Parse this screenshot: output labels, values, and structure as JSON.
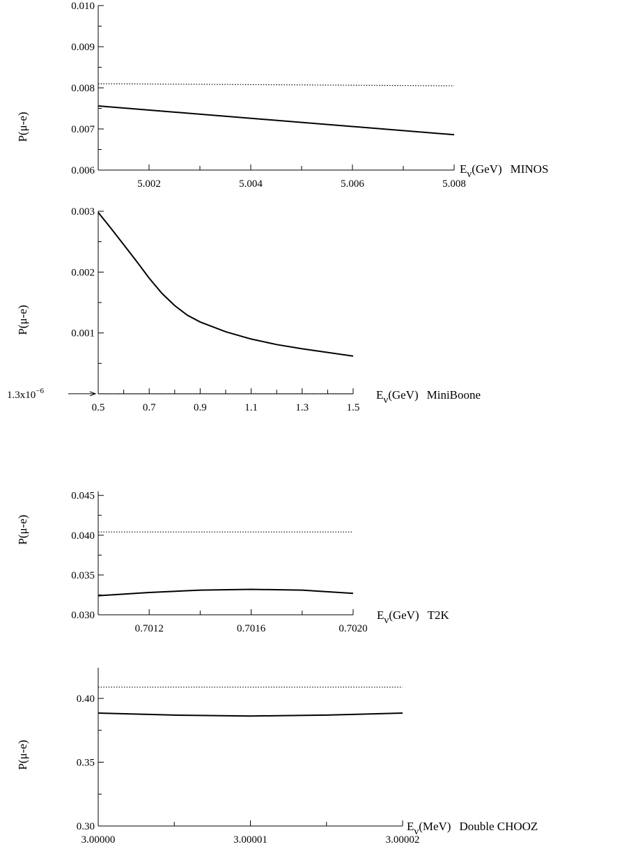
{
  "chart_data": [
    {
      "type": "line",
      "panel": "MINOS",
      "ylabel": "P(μ-e)",
      "xlabel": {
        "prefix": "E",
        "sub": "ν",
        "suffix": "(GeV)",
        "name": "MINOS"
      },
      "xlim": [
        5.001,
        5.008
      ],
      "ylim": [
        0.006,
        0.01
      ],
      "x_ticklabels": [
        "5.002",
        "5.004",
        "5.006",
        "5.008"
      ],
      "y_ticklabels": [
        "0.006",
        "0.007",
        "0.008",
        "0.009",
        "0.010"
      ],
      "series": [
        {
          "style": "solid",
          "x": [
            5.001,
            5.008
          ],
          "y": [
            0.00756,
            0.00686
          ]
        },
        {
          "style": "dotted",
          "x": [
            5.001,
            5.008
          ],
          "y": [
            0.0081,
            0.00805
          ]
        }
      ]
    },
    {
      "type": "line",
      "panel": "MiniBoone",
      "ylabel": "P(μ-e)",
      "xlabel": {
        "prefix": "E",
        "sub": "ν",
        "suffix": "(GeV)",
        "name": "MiniBoone"
      },
      "xlim": [
        0.5,
        1.5
      ],
      "ylim": [
        0.0,
        0.003
      ],
      "x_ticklabels": [
        "0.5",
        "0.7",
        "0.9",
        "1.1",
        "1.3",
        "1.5"
      ],
      "y_ticklabels": [
        "0.001",
        "0.002",
        "0.003"
      ],
      "annotation": {
        "base": "1.3x10",
        "exp": "−6"
      },
      "series": [
        {
          "style": "solid",
          "x": [
            0.5,
            0.55,
            0.6,
            0.65,
            0.7,
            0.75,
            0.8,
            0.85,
            0.9,
            0.95,
            1.0,
            1.1,
            1.2,
            1.3,
            1.4,
            1.5
          ],
          "y": [
            0.00298,
            0.00272,
            0.00245,
            0.00218,
            0.0019,
            0.00165,
            0.00145,
            0.00129,
            0.00118,
            0.0011,
            0.00102,
            0.0009,
            0.00081,
            0.00074,
            0.00068,
            0.00062
          ]
        },
        {
          "style": "dotted",
          "x": [
            0.5,
            1.5
          ],
          "y": [
            1.3e-06,
            1.3e-06
          ]
        }
      ]
    },
    {
      "type": "line",
      "panel": "T2K",
      "ylabel": "P(μ-e)",
      "xlabel": {
        "prefix": "E",
        "sub": "ν",
        "suffix": "(GeV)",
        "name": "T2K"
      },
      "xlim": [
        0.701,
        0.702
      ],
      "ylim": [
        0.03,
        0.0455
      ],
      "x_ticklabels": [
        "0.7012",
        "0.7016",
        "0.7020"
      ],
      "y_ticklabels": [
        "0.030",
        "0.035",
        "0.040",
        "0.045"
      ],
      "series": [
        {
          "style": "solid",
          "x": [
            0.701,
            0.7012,
            0.7014,
            0.7016,
            0.7018,
            0.702
          ],
          "y": [
            0.0324,
            0.0328,
            0.0331,
            0.0332,
            0.0331,
            0.0327
          ]
        },
        {
          "style": "dotted",
          "x": [
            0.701,
            0.702
          ],
          "y": [
            0.0404,
            0.0404
          ]
        }
      ]
    },
    {
      "type": "line",
      "panel": "Double CHOOZ",
      "ylabel": "P(μ-e)",
      "xlabel": {
        "prefix": "E",
        "sub": "ν",
        "suffix": "(MeV)",
        "name": "Double CHOOZ"
      },
      "xlim": [
        3.0,
        3.00002
      ],
      "ylim": [
        0.3,
        0.424
      ],
      "x_ticklabels": [
        "3.00000",
        "3.00001",
        "3.00002"
      ],
      "y_ticklabels": [
        "0.30",
        "0.35",
        "0.40"
      ],
      "series": [
        {
          "style": "solid",
          "x": [
            3.0,
            3.000005,
            3.00001,
            3.000015,
            3.00002
          ],
          "y": [
            0.3885,
            0.3869,
            0.3862,
            0.3869,
            0.3885
          ]
        },
        {
          "style": "dotted",
          "x": [
            3.0,
            3.00002
          ],
          "y": [
            0.4088,
            0.4088
          ]
        }
      ]
    }
  ]
}
